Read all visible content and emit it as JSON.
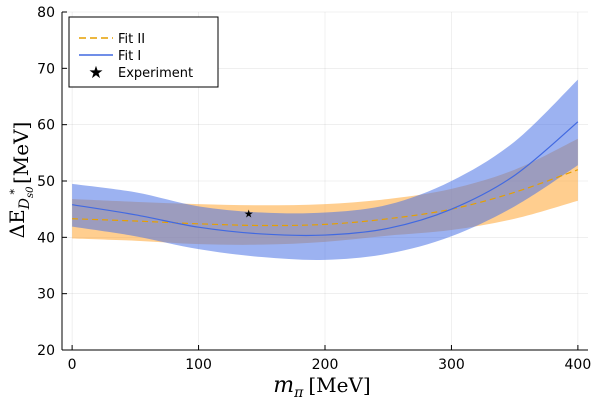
{
  "chart_data": {
    "type": "line",
    "xlabel_main": "m",
    "xlabel_sub": "π",
    "xlabel_unit": "[MeV]",
    "ylabel_main": "ΔE",
    "ylabel_sub": "D",
    "ylabel_subsub": "s0",
    "ylabel_star": "*",
    "ylabel_unit": "[MeV]",
    "xlim": [
      -8,
      408
    ],
    "ylim": [
      20,
      80
    ],
    "xticks": [
      0,
      100,
      200,
      300,
      400
    ],
    "yticks": [
      20,
      30,
      40,
      50,
      60,
      70,
      80
    ],
    "grid": true,
    "legend_position": "top-left",
    "series": [
      {
        "name": "Fit II",
        "style": "dashed",
        "color": "#e69f00",
        "fill_color": "#ffa533",
        "x": [
          0,
          50,
          100,
          150,
          200,
          250,
          300,
          350,
          400
        ],
        "y": [
          43.3,
          42.9,
          42.4,
          42.1,
          42.3,
          43.3,
          45.0,
          48.0,
          52.0
        ],
        "lower": [
          39.8,
          39.4,
          38.8,
          38.7,
          39.2,
          40.3,
          41.3,
          43.3,
          46.5
        ],
        "upper": [
          46.8,
          46.3,
          45.9,
          45.7,
          45.9,
          46.8,
          48.6,
          52.0,
          57.5
        ]
      },
      {
        "name": "Fit I",
        "style": "solid",
        "color": "#4169e1",
        "fill_color": "#4a72e6",
        "x": [
          0,
          50,
          100,
          150,
          200,
          250,
          300,
          350,
          400
        ],
        "y": [
          45.8,
          44.0,
          41.8,
          40.6,
          40.4,
          41.6,
          45.0,
          51.0,
          60.5
        ],
        "lower": [
          41.9,
          40.2,
          37.9,
          36.5,
          36.0,
          37.1,
          40.2,
          45.5,
          52.8
        ],
        "upper": [
          49.5,
          48.0,
          45.5,
          44.4,
          44.4,
          45.8,
          50.0,
          57.0,
          68.0
        ]
      }
    ],
    "experiment": {
      "name": "Experiment",
      "x": 139.6,
      "y": 44.2
    }
  }
}
